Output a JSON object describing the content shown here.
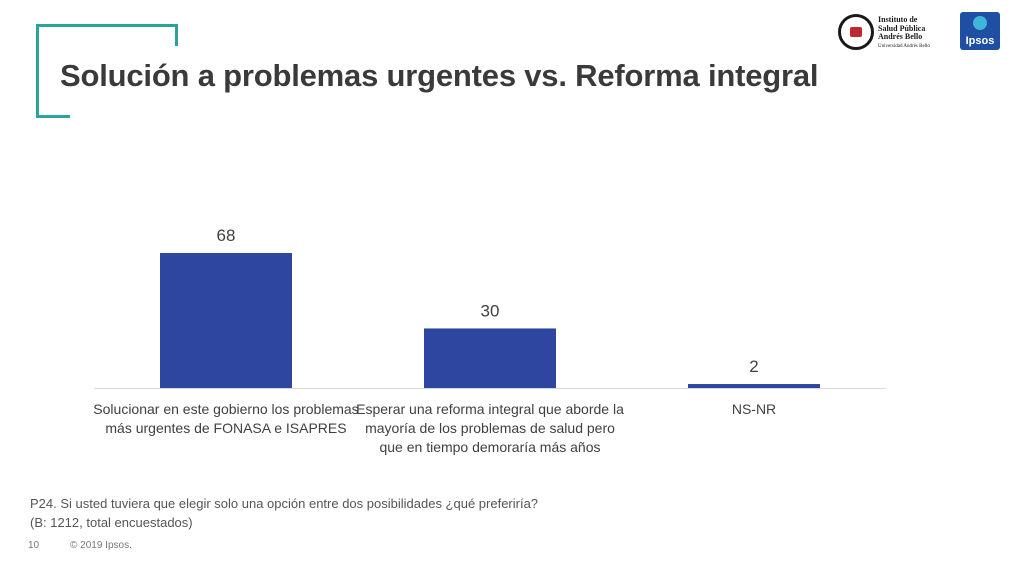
{
  "slide": {
    "title": "Solución a problemas urgentes vs. Reforma integral",
    "footnote_question": "P24. Si usted tuviera que elegir solo una opción entre dos posibilidades ¿qué preferiría?",
    "footnote_base": "(B: 1212, total encuestados)",
    "page_number": "10",
    "copyright": "© 2019 Ipsos.",
    "accent_color": "#2aa39a"
  },
  "logos": {
    "isp_lines": [
      "Instituto de",
      "Salud Pública",
      "Andrés Bello"
    ],
    "isp_sub": "Universidad Andrés Bello",
    "ipsos_word": "Ipsos"
  },
  "chart_data": {
    "type": "bar",
    "categories": [
      "Solucionar en este gobierno los problemas más urgentes de FONASA e ISAPRES",
      "Esperar una reforma integral que aborde la mayoría de los problemas de salud pero que en tiempo demoraría más años",
      "NS-NR"
    ],
    "values": [
      68,
      30,
      2
    ],
    "data_labels": [
      "68",
      "30",
      "2"
    ],
    "ylim": [
      0,
      68
    ],
    "grid": false,
    "bar_color": "#2e46a0",
    "axis_color": "#d9d9d9"
  }
}
